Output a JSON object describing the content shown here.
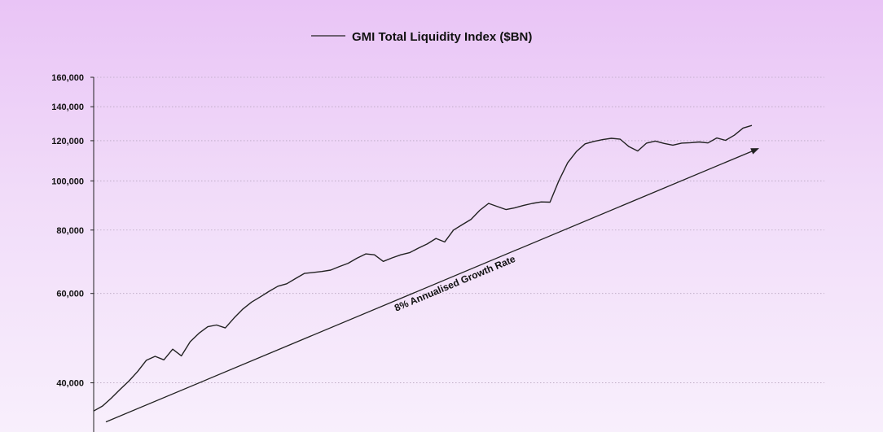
{
  "chart_data": {
    "type": "line",
    "title": "GMI Total Liquidity Index ($BN)",
    "legend": {
      "position": "top-center",
      "entries": [
        "GMI Total Liquidity Index ($BN)"
      ]
    },
    "y_scale": "log",
    "ylim": [
      32000,
      160000
    ],
    "y_ticks": [
      40000,
      60000,
      80000,
      100000,
      120000,
      140000,
      160000
    ],
    "y_tick_labels": [
      "40,000",
      "60,000",
      "80,000",
      "100,000",
      "120,000",
      "140,000",
      "160,000"
    ],
    "grid": "horizontal dotted",
    "series": [
      {
        "name": "GMI Total Liquidity Index ($BN)",
        "color": "#222222",
        "values": [
          35200,
          36000,
          37300,
          38800,
          40300,
          42100,
          44300,
          45100,
          44400,
          46600,
          45200,
          48200,
          50100,
          51600,
          52000,
          51300,
          53700,
          55900,
          57700,
          59100,
          60600,
          62000,
          62700,
          64200,
          65700,
          66000,
          66300,
          66700,
          67800,
          68800,
          70400,
          71800,
          71500,
          69400,
          70500,
          71500,
          72200,
          73700,
          75100,
          77000,
          75800,
          80000,
          82000,
          84000,
          87500,
          90300,
          89000,
          87800,
          88500,
          89500,
          90300,
          90900,
          90800,
          100000,
          108500,
          114200,
          118300,
          119600,
          120600,
          121300,
          120800,
          116800,
          114500,
          118700,
          119800,
          118500,
          117600,
          118700,
          118900,
          119300,
          118800,
          121500,
          120200,
          123000,
          127100,
          128600
        ]
      }
    ],
    "annotations": [
      {
        "text": "8% Annualised Growth Rate",
        "kind": "trend-arrow",
        "start_value": 33500,
        "end_value": 116000
      }
    ]
  }
}
